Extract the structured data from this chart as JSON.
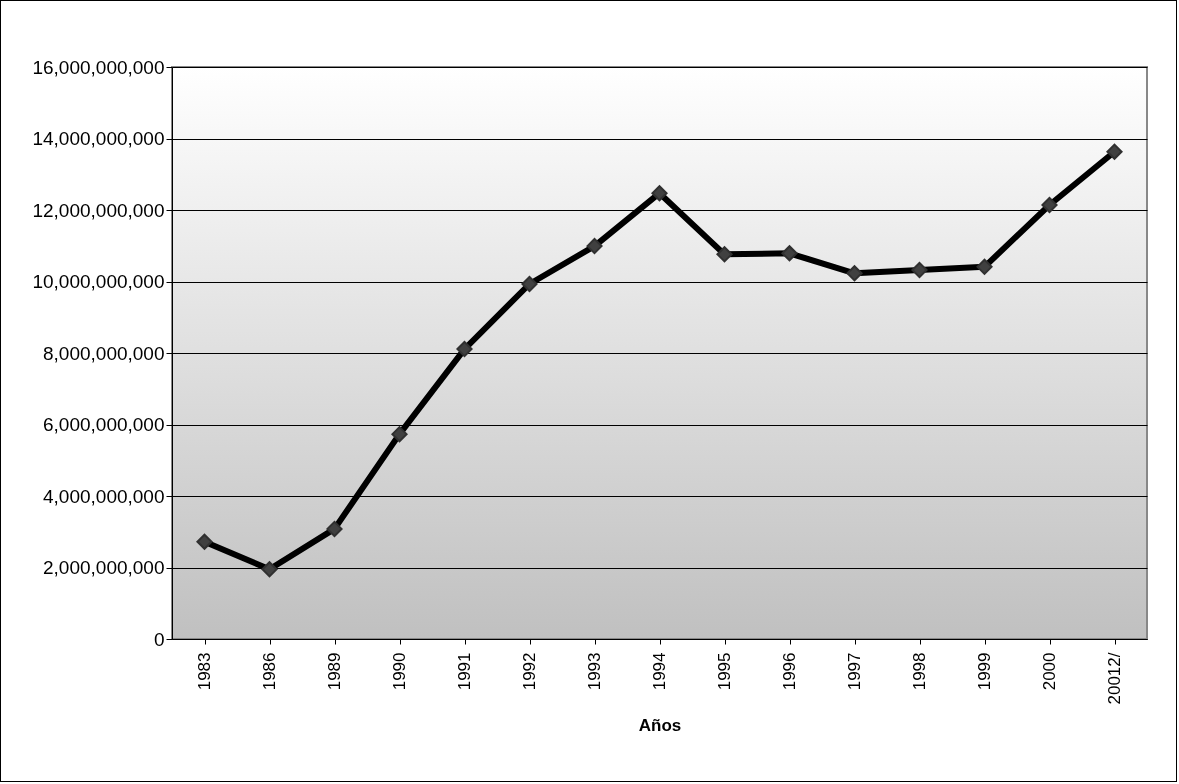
{
  "chart_data": {
    "type": "line",
    "xlabel": "Años",
    "categories": [
      "1983",
      "1986",
      "1989",
      "1990",
      "1991",
      "1992",
      "1993",
      "1994",
      "1995",
      "1996",
      "1997",
      "1998",
      "1999",
      "2000",
      "20012/"
    ],
    "series": [
      {
        "color": "#000000",
        "values": [
          2720000000,
          1950000000,
          3080000000,
          5730000000,
          8110000000,
          9930000000,
          10990000000,
          12470000000,
          10760000000,
          10790000000,
          10230000000,
          10320000000,
          10410000000,
          12140000000,
          13630000000
        ]
      }
    ],
    "ylim": [
      0,
      16000000000
    ],
    "yticks": [
      0,
      {
        "value": 2000000000,
        "label": "2,000,000,000"
      },
      {
        "value": 4000000000,
        "label": "4,000,000,000"
      },
      {
        "value": 6000000000,
        "label": "6,000,000,000"
      },
      {
        "value": 8000000000,
        "label": "8,000,000,000"
      },
      {
        "value": 10000000000,
        "label": "10,000,000,000"
      },
      {
        "value": 12000000000,
        "label": "12,000,000,000"
      },
      {
        "value": 14000000000,
        "label": "14,000,000,000"
      },
      {
        "value": 16000000000,
        "label": "16,000,000,000"
      }
    ],
    "grid": "y",
    "marker": "diamond",
    "line_style": "solid"
  }
}
